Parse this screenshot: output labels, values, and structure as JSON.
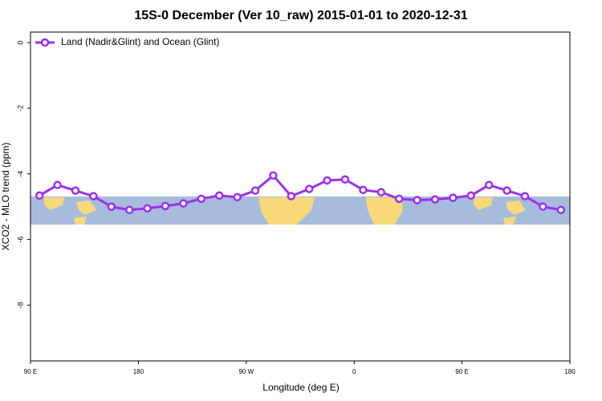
{
  "chart_data": {
    "type": "line",
    "title": "15S-0 December (Ver 10_raw)   2015-01-01 to 2020-12-31",
    "x_label": "Longitude (deg E)",
    "y_label": "XCO2 - MLO trend (ppm)",
    "xlim": [
      90,
      540
    ],
    "xticks": [
      {
        "value": 90,
        "label": "90 E"
      },
      180,
      {
        "value": 270,
        "label": "90 W"
      },
      {
        "value": 360,
        "label": "0"
      },
      {
        "value": 450,
        "label": "90 E"
      },
      {
        "value": 540,
        "label": "180"
      }
    ],
    "ylim": [
      -9.7,
      0.32
    ],
    "yticks": [
      0,
      -2,
      -4,
      -6,
      -8
    ],
    "legend": "top-left",
    "x": [
      97.5,
      112.5,
      127.5,
      142.5,
      157.5,
      172.5,
      187.5,
      202.5,
      217.5,
      232.5,
      247.5,
      262.5,
      277.5,
      292.5,
      307.5,
      322.5,
      337.5,
      352.5,
      367.5,
      382.5,
      397.5,
      412.5,
      427.5,
      442.5,
      457.5,
      472.5,
      487.5,
      502.5,
      517.5,
      532.5
    ],
    "series": [
      {
        "name": "Land (Nadir&Glint) and Ocean (Glint)",
        "color": "#9b30f0",
        "values": [
          -4.66,
          -4.34,
          -4.51,
          -4.68,
          -5.0,
          -5.1,
          -5.05,
          -4.98,
          -4.9,
          -4.76,
          -4.66,
          -4.71,
          -4.51,
          -4.05,
          -4.68,
          -4.46,
          -4.2,
          -4.17,
          -4.49,
          -4.56,
          -4.76,
          -4.8,
          -4.78,
          -4.73,
          -4.66,
          -4.34,
          -4.51,
          -4.68,
          -5.0,
          -5.1
        ]
      }
    ]
  }
}
